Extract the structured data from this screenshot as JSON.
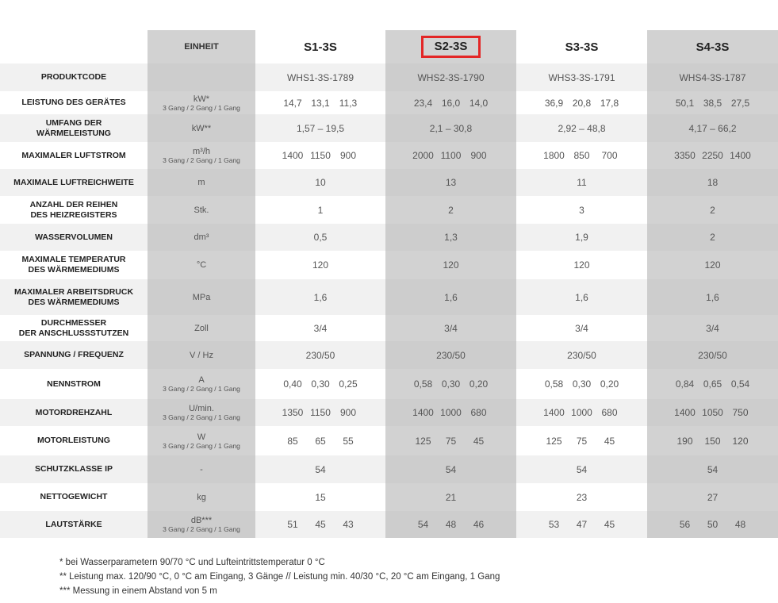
{
  "header": {
    "unit_label": "EINHEIT",
    "models": [
      "S1-3S",
      "S2-3S",
      "S3-3S",
      "S4-3S"
    ],
    "highlighted_model_index": 1,
    "highlight_color": "#e32626"
  },
  "rows": [
    {
      "label": "PRODUKTCODE",
      "unit": "",
      "unit_sub": "",
      "values": [
        [
          "WHS1-3S-1789"
        ],
        [
          "WHS2-3S-1790"
        ],
        [
          "WHS3-3S-1791"
        ],
        [
          "WHS4-3S-1787"
        ]
      ]
    },
    {
      "label": "LEISTUNG DES GERÄTES",
      "unit": "kW*",
      "unit_sub": "3 Gang / 2 Gang / 1 Gang",
      "values": [
        [
          "14,7",
          "13,1",
          "11,3"
        ],
        [
          "23,4",
          "16,0",
          "14,0"
        ],
        [
          "36,9",
          "20,8",
          "17,8"
        ],
        [
          "50,1",
          "38,5",
          "27,5"
        ]
      ]
    },
    {
      "label": "UMFANG DER\nWÄRMELEISTUNG",
      "unit": "kW**",
      "unit_sub": "",
      "values": [
        [
          "1,57 – 19,5"
        ],
        [
          "2,1 – 30,8"
        ],
        [
          "2,92 – 48,8"
        ],
        [
          "4,17 – 66,2"
        ]
      ]
    },
    {
      "label": "MAXIMALER LUFTSTROM",
      "unit": "m³/h",
      "unit_sub": "3 Gang / 2 Gang / 1 Gang",
      "values": [
        [
          "1400",
          "1150",
          "900"
        ],
        [
          "2000",
          "1100",
          "900"
        ],
        [
          "1800",
          "850",
          "700"
        ],
        [
          "3350",
          "2250",
          "1400"
        ]
      ]
    },
    {
      "label": "MAXIMALE LUFTREICHWEITE",
      "unit": "m",
      "unit_sub": "",
      "values": [
        [
          "10"
        ],
        [
          "13"
        ],
        [
          "11"
        ],
        [
          "18"
        ]
      ]
    },
    {
      "label": "ANZAHL DER REIHEN\nDES HEIZREGISTERS",
      "unit": "Stk.",
      "unit_sub": "",
      "values": [
        [
          "1"
        ],
        [
          "2"
        ],
        [
          "3"
        ],
        [
          "2"
        ]
      ]
    },
    {
      "label": "WASSERVOLUMEN",
      "unit": "dm³",
      "unit_sub": "",
      "values": [
        [
          "0,5"
        ],
        [
          "1,3"
        ],
        [
          "1,9"
        ],
        [
          "2"
        ]
      ]
    },
    {
      "label": "MAXIMALE TEMPERATUR\nDES WÄRMEMEDIUMS",
      "unit": "°C",
      "unit_sub": "",
      "values": [
        [
          "120"
        ],
        [
          "120"
        ],
        [
          "120"
        ],
        [
          "120"
        ]
      ]
    },
    {
      "label": "MAXIMALER ARBEITSDRUCK\nDES WÄRMEMEDIUMS",
      "unit": "MPa",
      "unit_sub": "",
      "values": [
        [
          "1,6"
        ],
        [
          "1,6"
        ],
        [
          "1,6"
        ],
        [
          "1,6"
        ]
      ]
    },
    {
      "label": "DURCHMESSER\nDER ANSCHLUSSSTUTZEN",
      "unit": "Zoll",
      "unit_sub": "",
      "values": [
        [
          "3/4"
        ],
        [
          "3/4"
        ],
        [
          "3/4"
        ],
        [
          "3/4"
        ]
      ]
    },
    {
      "label": "SPANNUNG / FREQUENZ",
      "unit": "V / Hz",
      "unit_sub": "",
      "values": [
        [
          "230/50"
        ],
        [
          "230/50"
        ],
        [
          "230/50"
        ],
        [
          "230/50"
        ]
      ]
    },
    {
      "label": "NENNSTROM",
      "unit": "A",
      "unit_sub": "3 Gang / 2 Gang / 1 Gang",
      "values": [
        [
          "0,40",
          "0,30",
          "0,25"
        ],
        [
          "0,58",
          "0,30",
          "0,20"
        ],
        [
          "0,58",
          "0,30",
          "0,20"
        ],
        [
          "0,84",
          "0,65",
          "0,54"
        ]
      ]
    },
    {
      "label": "MOTORDREHZAHL",
      "unit": "U/min.",
      "unit_sub": "3 Gang / 2 Gang / 1 Gang",
      "values": [
        [
          "1350",
          "1150",
          "900"
        ],
        [
          "1400",
          "1000",
          "680"
        ],
        [
          "1400",
          "1000",
          "680"
        ],
        [
          "1400",
          "1050",
          "750"
        ]
      ]
    },
    {
      "label": "MOTORLEISTUNG",
      "unit": "W",
      "unit_sub": "3 Gang / 2 Gang / 1 Gang",
      "values": [
        [
          "85",
          "65",
          "55"
        ],
        [
          "125",
          "75",
          "45"
        ],
        [
          "125",
          "75",
          "45"
        ],
        [
          "190",
          "150",
          "120"
        ]
      ]
    },
    {
      "label": "SCHUTZKLASSE IP",
      "unit": "-",
      "unit_sub": "",
      "values": [
        [
          "54"
        ],
        [
          "54"
        ],
        [
          "54"
        ],
        [
          "54"
        ]
      ]
    },
    {
      "label": "NETTOGEWICHT",
      "unit": "kg",
      "unit_sub": "",
      "values": [
        [
          "15"
        ],
        [
          "21"
        ],
        [
          "23"
        ],
        [
          "27"
        ]
      ]
    },
    {
      "label": "LAUTSTÄRKE",
      "unit": "dB***",
      "unit_sub": "3 Gang / 2 Gang / 1 Gang",
      "values": [
        [
          "51",
          "45",
          "43"
        ],
        [
          "54",
          "48",
          "46"
        ],
        [
          "53",
          "47",
          "45"
        ],
        [
          "56",
          "50",
          "48"
        ]
      ]
    }
  ],
  "footnotes": [
    "* bei Wasserparametern 90/70 °C und Lufteintrittstemperatur 0 °C",
    "** Leistung max. 120/90 °C, 0 °C am Eingang, 3 Gänge // Leistung min. 40/30 °C, 20 °C am Eingang, 1 Gang",
    "*** Messung in einem Abstand von 5 m"
  ]
}
